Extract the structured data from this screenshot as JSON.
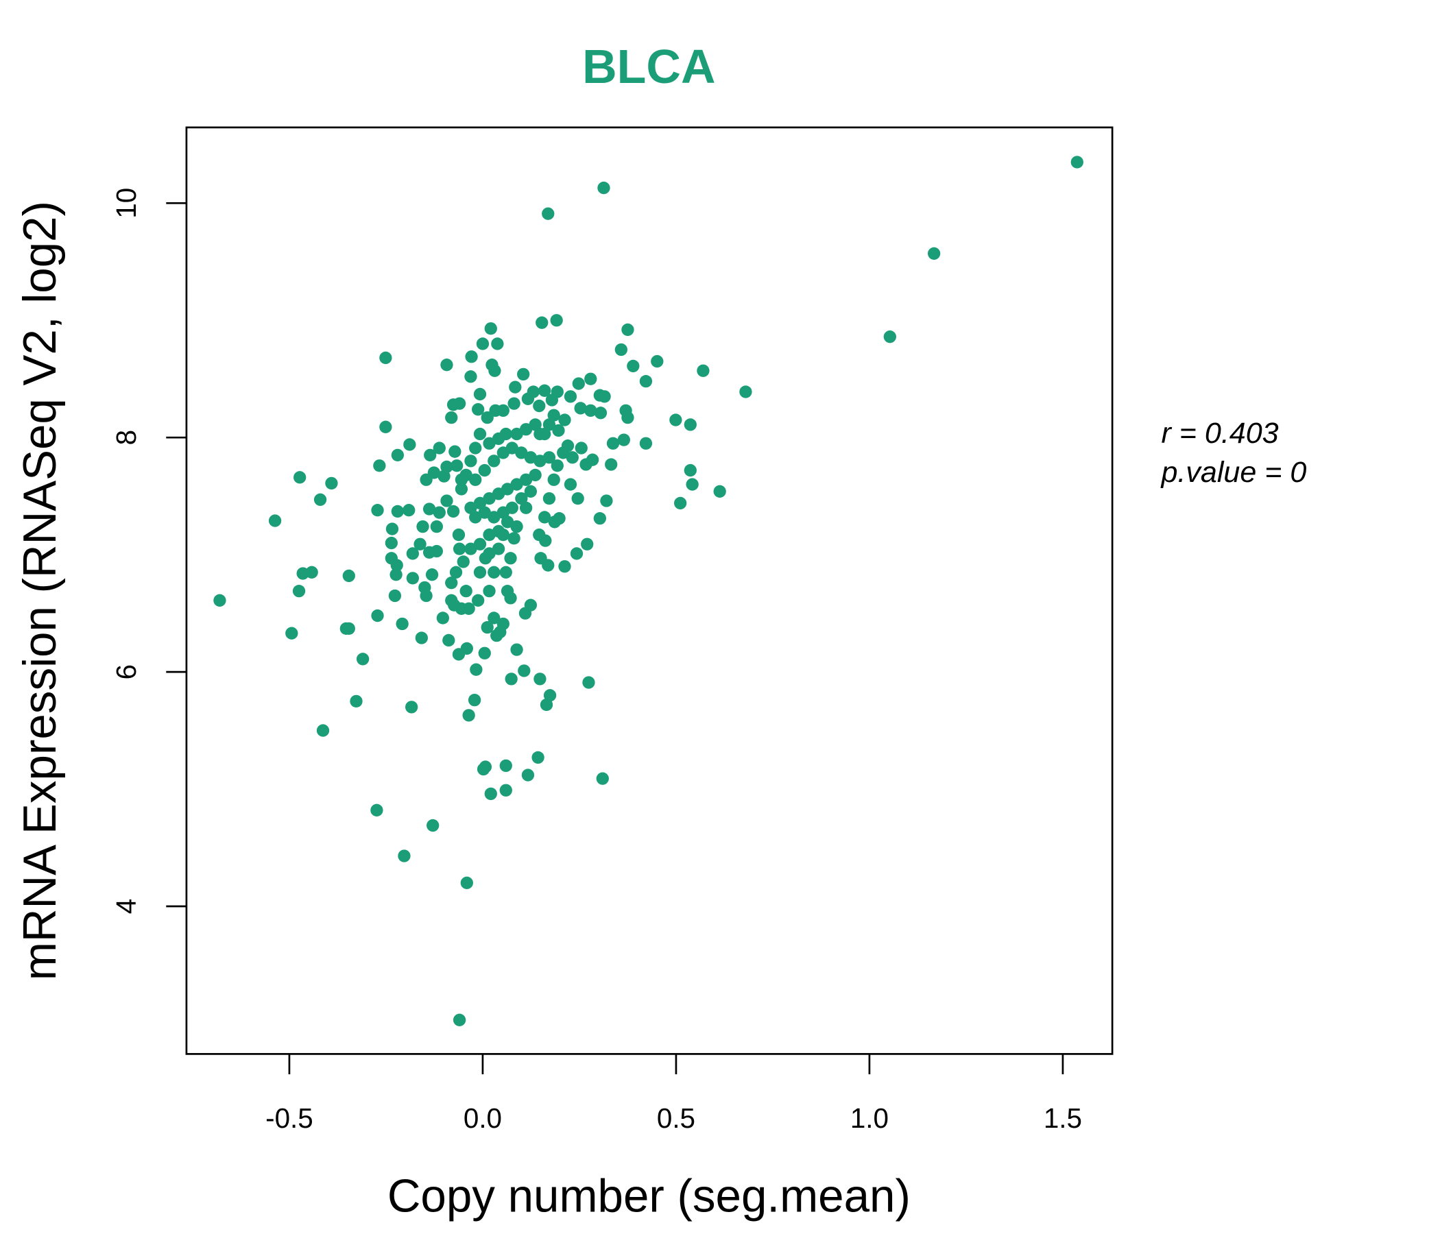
{
  "chart_data": {
    "type": "scatter",
    "title": "BLCA",
    "xlabel": "Copy number (seg.mean)",
    "ylabel": "mRNA Expression (RNASeq V2, log2)",
    "xlim": [
      -0.766,
      1.628
    ],
    "ylim": [
      2.74,
      10.646
    ],
    "x_ticks": [
      "-0.5",
      "0.0",
      "0.5",
      "1.0",
      "1.5"
    ],
    "x_tick_values": [
      -0.5,
      0,
      0.5,
      1.0,
      1.5
    ],
    "y_ticks": [
      "4",
      "6",
      "8",
      "10"
    ],
    "y_tick_values": [
      4,
      6,
      8,
      10
    ],
    "grid": false,
    "point_color": "#1B9E77",
    "title_color": "#1B9E77",
    "annotation": {
      "r_label": "r = 0.403",
      "p_label": "p.value = 0"
    },
    "points": [
      [
        1.537,
        10.35
      ],
      [
        1.167,
        9.57
      ],
      [
        1.053,
        8.86
      ],
      [
        0.68,
        8.39
      ],
      [
        0.613,
        7.54
      ],
      [
        0.57,
        8.57
      ],
      [
        0.542,
        7.6
      ],
      [
        0.537,
        7.72
      ],
      [
        0.537,
        8.11
      ],
      [
        0.511,
        7.44
      ],
      [
        0.499,
        8.15
      ],
      [
        0.451,
        8.65
      ],
      [
        0.422,
        8.48
      ],
      [
        0.422,
        7.95
      ],
      [
        0.389,
        8.61
      ],
      [
        0.375,
        8.92
      ],
      [
        0.358,
        8.75
      ],
      [
        0.37,
        8.23
      ],
      [
        0.375,
        8.17
      ],
      [
        0.365,
        7.98
      ],
      [
        0.332,
        7.77
      ],
      [
        0.337,
        7.95
      ],
      [
        0.32,
        7.46
      ],
      [
        0.303,
        7.31
      ],
      [
        0.27,
        7.09
      ],
      [
        0.243,
        7.01
      ],
      [
        0.212,
        6.9
      ],
      [
        0.169,
        6.91
      ],
      [
        0.313,
        10.13
      ],
      [
        0.169,
        9.91
      ],
      [
        0.191,
        9.0
      ],
      [
        0.153,
        8.98
      ],
      [
        0.021,
        8.93
      ],
      [
        0.0,
        8.8
      ],
      [
        0.038,
        8.8
      ],
      [
        -0.029,
        8.69
      ],
      [
        -0.093,
        8.62
      ],
      [
        -0.251,
        8.68
      ],
      [
        -0.251,
        8.09
      ],
      [
        -0.267,
        7.76
      ],
      [
        -0.22,
        7.85
      ],
      [
        -0.189,
        7.94
      ],
      [
        -0.391,
        7.61
      ],
      [
        -0.473,
        7.66
      ],
      [
        -0.42,
        7.47
      ],
      [
        -0.537,
        7.29
      ],
      [
        -0.68,
        6.61
      ],
      [
        -0.465,
        6.84
      ],
      [
        -0.442,
        6.85
      ],
      [
        -0.475,
        6.69
      ],
      [
        -0.494,
        6.33
      ],
      [
        -0.346,
        6.82
      ],
      [
        -0.353,
        6.37
      ],
      [
        -0.346,
        6.37
      ],
      [
        -0.31,
        6.11
      ],
      [
        -0.327,
        5.75
      ],
      [
        -0.413,
        5.5
      ],
      [
        -0.274,
        4.82
      ],
      [
        -0.203,
        4.43
      ],
      [
        -0.129,
        4.69
      ],
      [
        -0.184,
        5.7
      ],
      [
        -0.208,
        6.41
      ],
      [
        -0.158,
        6.29
      ],
      [
        -0.272,
        6.48
      ],
      [
        -0.272,
        7.38
      ],
      [
        -0.227,
        6.65
      ],
      [
        -0.041,
        4.2
      ],
      [
        -0.06,
        3.03
      ],
      [
        -0.036,
        5.63
      ],
      [
        -0.021,
        5.76
      ],
      [
        -0.017,
        6.02
      ],
      [
        0.002,
        5.17
      ],
      [
        0.007,
        5.19
      ],
      [
        0.021,
        4.96
      ],
      [
        0.06,
        4.99
      ],
      [
        0.06,
        5.2
      ],
      [
        0.117,
        5.12
      ],
      [
        0.143,
        5.27
      ],
      [
        0.31,
        5.09
      ],
      [
        0.107,
        6.01
      ],
      [
        0.148,
        5.94
      ],
      [
        0.074,
        5.94
      ],
      [
        0.165,
        5.72
      ],
      [
        0.174,
        5.8
      ],
      [
        0.274,
        5.91
      ],
      [
        0.088,
        6.19
      ],
      [
        0.005,
        6.16
      ],
      [
        -0.062,
        6.15
      ],
      [
        -0.088,
        6.27
      ],
      [
        -0.041,
        6.2
      ],
      [
        0.124,
        6.57
      ],
      [
        0.11,
        6.5
      ],
      [
        0.072,
        6.63
      ],
      [
        0.053,
        6.41
      ],
      [
        0.15,
        6.97
      ],
      [
        0.162,
        7.12
      ],
      [
        0.186,
        7.28
      ],
      [
        0.198,
        7.31
      ],
      [
        0.227,
        7.6
      ],
      [
        0.246,
        7.48
      ],
      [
        0.267,
        7.77
      ],
      [
        0.284,
        7.81
      ],
      [
        0.248,
        8.46
      ],
      [
        0.279,
        8.5
      ],
      [
        0.303,
        8.36
      ],
      [
        0.315,
        8.35
      ],
      [
        0.305,
        8.21
      ],
      [
        0.253,
        8.25
      ],
      [
        0.105,
        8.54
      ],
      [
        0.084,
        8.43
      ],
      [
        -0.031,
        8.52
      ],
      [
        -0.076,
        8.28
      ],
      [
        -0.06,
        8.29
      ],
      [
        -0.081,
        8.17
      ],
      [
        -0.112,
        7.91
      ],
      [
        -0.136,
        7.85
      ],
      [
        -0.146,
        7.64
      ],
      [
        -0.126,
        7.7
      ],
      [
        -0.1,
        7.67
      ],
      [
        -0.093,
        7.75
      ],
      [
        -0.072,
        7.88
      ],
      [
        -0.191,
        7.38
      ],
      [
        -0.22,
        7.37
      ],
      [
        -0.234,
        7.22
      ],
      [
        -0.236,
        7.1
      ],
      [
        -0.236,
        6.97
      ],
      [
        -0.222,
        6.91
      ],
      [
        -0.224,
        6.83
      ],
      [
        -0.181,
        7.01
      ],
      [
        -0.162,
        7.09
      ],
      [
        -0.155,
        7.24
      ],
      [
        -0.138,
        7.39
      ],
      [
        -0.119,
        7.24
      ],
      [
        -0.112,
        7.36
      ],
      [
        -0.138,
        7.02
      ],
      [
        -0.119,
        7.03
      ],
      [
        -0.181,
        6.8
      ],
      [
        -0.15,
        6.72
      ],
      [
        -0.146,
        6.65
      ],
      [
        -0.131,
        6.83
      ],
      [
        -0.103,
        6.46
      ],
      [
        -0.081,
        6.76
      ],
      [
        -0.081,
        6.61
      ],
      [
        -0.069,
        6.85
      ],
      [
        -0.074,
        6.57
      ],
      [
        -0.093,
        7.46
      ],
      [
        -0.076,
        7.37
      ],
      [
        -0.062,
        7.17
      ],
      [
        -0.06,
        7.05
      ],
      [
        -0.05,
        6.94
      ],
      [
        -0.043,
        6.69
      ],
      [
        -0.055,
        6.54
      ],
      [
        -0.036,
        6.54
      ],
      [
        -0.012,
        6.61
      ],
      [
        -0.007,
        6.85
      ],
      [
        0.007,
        6.97
      ],
      [
        0.017,
        6.69
      ],
      [
        0.029,
        6.85
      ],
      [
        0.012,
        6.38
      ],
      [
        0.029,
        6.46
      ],
      [
        0.036,
        6.31
      ],
      [
        0.045,
        6.34
      ],
      [
        0.064,
        6.69
      ],
      [
        0.072,
        6.97
      ],
      [
        0.06,
        6.85
      ],
      [
        0.088,
        7.24
      ],
      [
        0.081,
        7.14
      ],
      [
        0.112,
        7.4
      ],
      [
        0.124,
        7.54
      ],
      [
        0.146,
        7.17
      ],
      [
        0.16,
        7.32
      ],
      [
        0.172,
        7.48
      ],
      [
        0.184,
        7.64
      ],
      [
        0.193,
        7.76
      ],
      [
        0.208,
        7.87
      ],
      [
        0.22,
        7.93
      ],
      [
        0.196,
        8.06
      ],
      [
        0.184,
        8.19
      ],
      [
        0.179,
        8.32
      ],
      [
        0.193,
        8.39
      ],
      [
        0.16,
        8.4
      ],
      [
        0.131,
        8.39
      ],
      [
        0.117,
        8.33
      ],
      [
        0.081,
        8.29
      ],
      [
        0.053,
        8.23
      ],
      [
        0.033,
        8.23
      ],
      [
        0.012,
        8.17
      ],
      [
        -0.012,
        8.24
      ],
      [
        -0.007,
        8.37
      ],
      [
        0.024,
        8.62
      ],
      [
        0.031,
        8.57
      ],
      [
        0.146,
        8.27
      ],
      [
        0.16,
        8.03
      ],
      [
        0.136,
        8.11
      ],
      [
        0.112,
        8.07
      ],
      [
        0.088,
        8.03
      ],
      [
        0.06,
        8.03
      ],
      [
        0.041,
        7.99
      ],
      [
        0.017,
        7.95
      ],
      [
        -0.007,
        8.03
      ],
      [
        -0.019,
        7.91
      ],
      [
        -0.031,
        7.8
      ],
      [
        -0.043,
        7.68
      ],
      [
        -0.019,
        7.64
      ],
      [
        0.005,
        7.72
      ],
      [
        0.029,
        7.8
      ],
      [
        0.053,
        7.87
      ],
      [
        0.076,
        7.91
      ],
      [
        0.1,
        7.87
      ],
      [
        0.124,
        7.83
      ],
      [
        0.148,
        7.8
      ],
      [
        0.172,
        7.83
      ],
      [
        0.136,
        7.68
      ],
      [
        0.112,
        7.64
      ],
      [
        0.088,
        7.6
      ],
      [
        0.064,
        7.56
      ],
      [
        0.041,
        7.52
      ],
      [
        0.017,
        7.48
      ],
      [
        -0.007,
        7.44
      ],
      [
        -0.031,
        7.4
      ],
      [
        -0.019,
        7.32
      ],
      [
        0.005,
        7.36
      ],
      [
        0.029,
        7.32
      ],
      [
        0.053,
        7.36
      ],
      [
        0.076,
        7.4
      ],
      [
        0.1,
        7.48
      ],
      [
        0.064,
        7.28
      ],
      [
        0.041,
        7.2
      ],
      [
        0.017,
        7.17
      ],
      [
        -0.007,
        7.09
      ],
      [
        -0.031,
        7.05
      ],
      [
        0.041,
        7.05
      ],
      [
        0.017,
        7.01
      ],
      [
        0.053,
        7.17
      ],
      [
        -0.055,
        7.56
      ],
      [
        -0.055,
        7.64
      ],
      [
        -0.067,
        7.76
      ],
      [
        0.148,
        8.03
      ],
      [
        0.172,
        8.11
      ],
      [
        0.232,
        7.83
      ],
      [
        0.255,
        7.91
      ],
      [
        0.212,
        8.15
      ],
      [
        0.227,
        8.35
      ],
      [
        0.279,
        8.23
      ]
    ]
  }
}
